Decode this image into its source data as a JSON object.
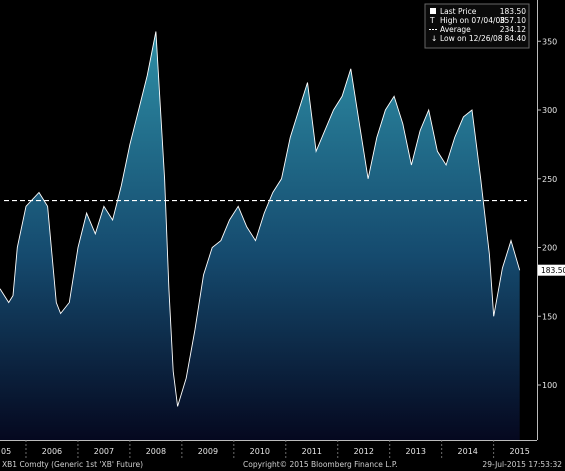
{
  "chart_data": {
    "type": "area",
    "title": "",
    "xlabel": "",
    "ylabel": "",
    "ylim": [
      60,
      380
    ],
    "y_ticks": [
      100,
      150,
      200,
      250,
      300,
      350
    ],
    "x_tick_labels": [
      "05",
      "2006",
      "2007",
      "2008",
      "2009",
      "2010",
      "2011",
      "2012",
      "2013",
      "2014",
      "2015"
    ],
    "grid": false,
    "legend_placement": "top-right",
    "last_value_label": "183.50",
    "average_value": 234.12,
    "colors": {
      "line": "#ffffff",
      "area_top": "#2e8fa6",
      "area_bottom": "#05081f",
      "average_line": "#ffffff",
      "background": "#000000"
    },
    "series": [
      {
        "x": [
          "2005-07",
          "2005-09",
          "2005-10",
          "2005-11",
          "2006-01",
          "2006-04",
          "2006-06",
          "2006-08",
          "2006-09",
          "2006-11",
          "2007-01",
          "2007-03",
          "2007-05",
          "2007-07",
          "2007-09",
          "2007-11",
          "2008-01",
          "2008-03",
          "2008-05",
          "2008-07",
          "2008-09",
          "2008-10",
          "2008-11",
          "2008-12",
          "2009-02",
          "2009-04",
          "2009-06",
          "2009-08",
          "2009-10",
          "2009-12",
          "2010-02",
          "2010-04",
          "2010-06",
          "2010-08",
          "2010-10",
          "2010-12",
          "2011-02",
          "2011-04",
          "2011-06",
          "2011-08",
          "2011-10",
          "2011-12",
          "2012-02",
          "2012-04",
          "2012-06",
          "2012-08",
          "2012-10",
          "2012-12",
          "2013-02",
          "2013-04",
          "2013-06",
          "2013-08",
          "2013-10",
          "2013-12",
          "2014-02",
          "2014-04",
          "2014-06",
          "2014-08",
          "2014-10",
          "2014-12",
          "2015-01",
          "2015-03",
          "2015-05",
          "2015-07"
        ],
        "values": [
          170,
          160,
          165,
          200,
          230,
          240,
          230,
          160,
          152,
          160,
          200,
          225,
          210,
          230,
          220,
          245,
          275,
          300,
          325,
          357.1,
          250,
          170,
          110,
          84.4,
          105,
          140,
          180,
          200,
          205,
          220,
          230,
          215,
          205,
          225,
          240,
          250,
          280,
          300,
          320,
          270,
          285,
          300,
          310,
          330,
          290,
          250,
          280,
          300,
          310,
          290,
          260,
          285,
          300,
          270,
          260,
          280,
          295,
          300,
          250,
          195,
          150,
          185,
          205,
          183.5
        ]
      }
    ]
  },
  "legend": {
    "items": [
      {
        "label": "Last Price",
        "value": "183.50"
      },
      {
        "label": "High on 07/04/08",
        "value": "357.10"
      },
      {
        "label": "Average",
        "value": "234.12"
      },
      {
        "label": "Low on 12/26/08",
        "value": "84.40"
      }
    ]
  },
  "footer": {
    "left": "XB1 Comdty (Generic 1st 'XB' Future)",
    "center": "Copyright© 2015 Bloomberg Finance L.P.",
    "right": "29-Jul-2015 17:53:32"
  }
}
